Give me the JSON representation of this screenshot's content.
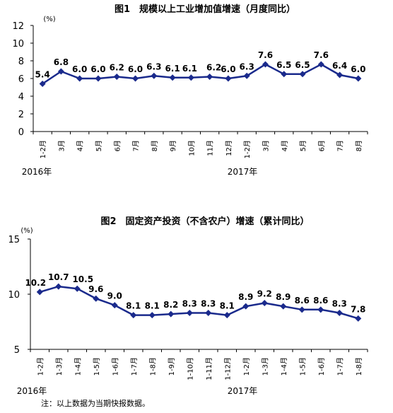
{
  "chart_data": [
    {
      "type": "line",
      "title": "图1　规模以上工业增加值增速（月度同比）",
      "ylabel": "",
      "yunit": "(%)",
      "ylim": [
        0,
        12
      ],
      "yticks": [
        "0",
        "2",
        "4",
        "6",
        "8",
        "10",
        "12"
      ],
      "categories": [
        "1-2月",
        "3月",
        "4月",
        "5月",
        "6月",
        "7月",
        "8月",
        "9月",
        "10月",
        "11月",
        "12月",
        "1-2月",
        "3月",
        "4月",
        "5月",
        "6月",
        "7月",
        "8月"
      ],
      "years": [
        "2016年",
        "2017年"
      ],
      "series": [
        {
          "name": "",
          "values": [
            5.4,
            6.8,
            6.0,
            6.0,
            6.2,
            6.0,
            6.3,
            6.1,
            6.1,
            6.2,
            6.0,
            6.3,
            7.6,
            6.5,
            6.5,
            7.6,
            6.4,
            6.0
          ]
        }
      ],
      "data_labels": [
        "5.4",
        "6.8",
        "6.0",
        "6.0",
        "6.2",
        "6.0",
        "6.3",
        "6.1",
        "6.1",
        "6.2",
        "6.0",
        "6.3",
        "7.6",
        "6.5",
        "6.5",
        "7.6",
        "6.4",
        "6.0"
      ],
      "line_color": "#1a2a8c",
      "grid": false
    },
    {
      "type": "line",
      "title": "图2　固定资产投资（不含农户）增速（累计同比）",
      "ylabel": "",
      "yunit": "(%)",
      "ylim": [
        5,
        15
      ],
      "yticks": [
        "5",
        "10",
        "15"
      ],
      "categories": [
        "1-2月",
        "1-3月",
        "1-4月",
        "1-5月",
        "1-6月",
        "1-7月",
        "1-8月",
        "1-9月",
        "1-10月",
        "1-11月",
        "1-12月",
        "1-2月",
        "1-3月",
        "1-4月",
        "1-5月",
        "1-6月",
        "1-7月",
        "1-8月"
      ],
      "years": [
        "2016年",
        "2017年"
      ],
      "series": [
        {
          "name": "",
          "values": [
            10.2,
            10.7,
            10.5,
            9.6,
            9.0,
            8.1,
            8.1,
            8.2,
            8.3,
            8.3,
            8.1,
            8.9,
            9.2,
            8.9,
            8.6,
            8.6,
            8.3,
            7.8
          ]
        }
      ],
      "data_labels": [
        "10.2",
        "10.7",
        "10.5",
        "9.6",
        "9.0",
        "8.1",
        "8.1",
        "8.2",
        "8.3",
        "8.3",
        "8.1",
        "8.9",
        "9.2",
        "8.9",
        "8.6",
        "8.6",
        "8.3",
        "7.8"
      ],
      "line_color": "#1a2a8c",
      "grid": false
    }
  ],
  "footnote": "注：以上数据为当期快报数据。"
}
